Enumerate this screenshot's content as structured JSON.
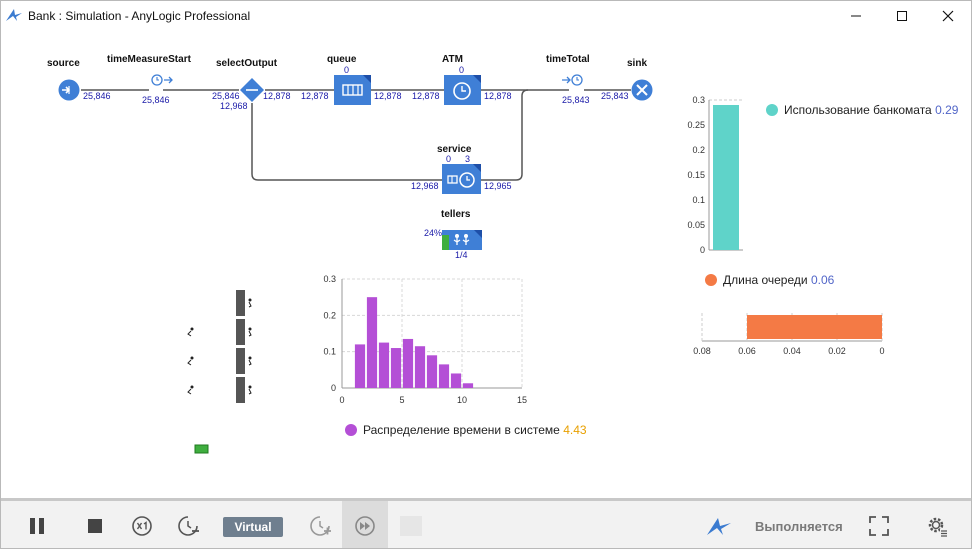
{
  "window": {
    "title": "Bank : Simulation - AnyLogic Professional"
  },
  "flow": {
    "source": {
      "label": "source",
      "out": "25,846"
    },
    "timeMeasureStart": {
      "label": "timeMeasureStart",
      "out": "25,846"
    },
    "selectOutput": {
      "label": "selectOutput",
      "in": "25,846",
      "out_top": "12,878",
      "out_bottom": "12,968"
    },
    "queue": {
      "label": "queue",
      "size": "0",
      "in": "12,878",
      "out": "12,878"
    },
    "atm": {
      "label": "ATM",
      "size": "0",
      "in": "12,878",
      "out": "12,878"
    },
    "timeTotal": {
      "label": "timeTotal",
      "out": "25,843"
    },
    "sink": {
      "label": "sink",
      "in": "25,843"
    },
    "service": {
      "label": "service",
      "queue_size": "0",
      "busy": "3",
      "in": "12,968",
      "out": "12,965"
    },
    "tellers": {
      "label": "tellers",
      "utilization": "24%",
      "count": "1/4"
    }
  },
  "chart_data": [
    {
      "type": "bar",
      "categories": [
        "Использование банкомата"
      ],
      "values": [
        0.29
      ],
      "legend": [
        {
          "name": "Использование банкомата",
          "value": "0.29",
          "color": "#5fd3c9"
        }
      ],
      "ylim": [
        0,
        0.3
      ],
      "yticks": [
        "0.3",
        "0.25",
        "0.2",
        "0.15",
        "0.1",
        "0.05",
        "0"
      ],
      "orientation": "vertical"
    },
    {
      "type": "bar",
      "categories": [
        "Длина очереди"
      ],
      "values": [
        0.06
      ],
      "legend": [
        {
          "name": "Длина очереди",
          "value": "0.06",
          "color": "#f47a45"
        }
      ],
      "xlim": [
        0.08,
        0
      ],
      "xticks": [
        "0.08",
        "0.06",
        "0.04",
        "0.02",
        "0"
      ],
      "orientation": "horizontal"
    },
    {
      "type": "bar",
      "title": "",
      "x": [
        1.5,
        2.5,
        3.5,
        4.5,
        5.5,
        6.5,
        7.5,
        8.5,
        9.5,
        10.5
      ],
      "values": [
        0.12,
        0.25,
        0.125,
        0.11,
        0.135,
        0.115,
        0.09,
        0.065,
        0.04,
        0.013
      ],
      "legend": [
        {
          "name": "Распределение времени в системе",
          "value": "4.43",
          "color": "#b44fd6"
        }
      ],
      "xlim": [
        0,
        15
      ],
      "ylim": [
        0,
        0.3
      ],
      "xticks": [
        "0",
        "5",
        "10",
        "15"
      ],
      "yticks": [
        "0.3",
        "0.2",
        "0.1",
        "0"
      ],
      "grid": true
    }
  ],
  "toolbar": {
    "virtual_label": "Virtual",
    "status_label": "Выполняется"
  },
  "colors": {
    "accent_blue": "#3f7fd6",
    "teal": "#5fd3c9",
    "orange": "#f47a45",
    "purple": "#b44fd6",
    "green": "#3fae3f"
  }
}
